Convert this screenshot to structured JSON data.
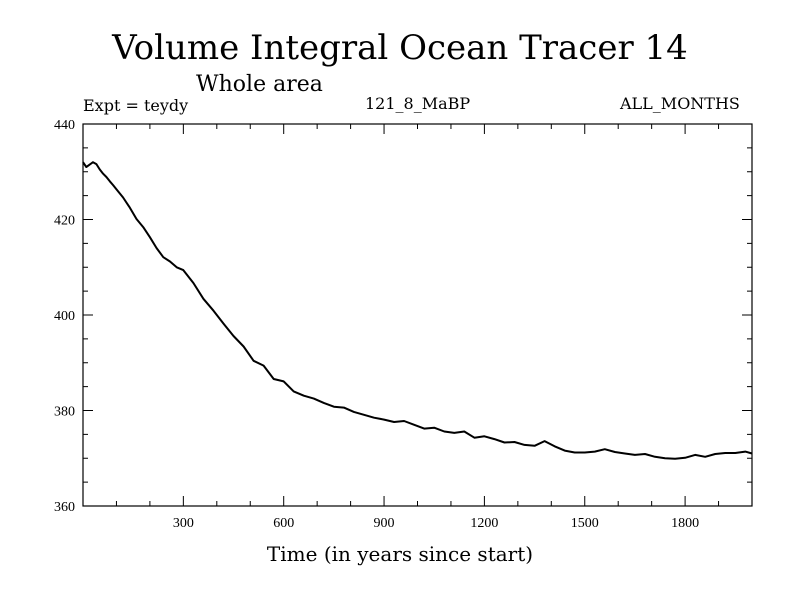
{
  "header": {
    "title": "Volume Integral Ocean Tracer 14",
    "subtitle": "Whole area",
    "experiment": "Expt = teydy",
    "run_label": "121_8_MaBP",
    "months_label": "ALL_MONTHS"
  },
  "chart_data": {
    "type": "line",
    "title": "Volume Integral Ocean Tracer 14",
    "subtitle": "Whole area",
    "xlabel": "Time (in years since start)",
    "ylabel": "",
    "xlim": [
      0,
      2000
    ],
    "ylim": [
      360,
      440
    ],
    "xticks": [
      300,
      600,
      900,
      1200,
      1500,
      1800
    ],
    "yticks": [
      360,
      380,
      400,
      420,
      440
    ],
    "grid": false,
    "series": [
      {
        "name": "Tracer 14",
        "color": "#000000",
        "x": [
          0,
          10,
          20,
          30,
          40,
          50,
          60,
          70,
          80,
          90,
          100,
          120,
          140,
          160,
          180,
          200,
          220,
          240,
          260,
          280,
          300,
          330,
          360,
          390,
          420,
          450,
          480,
          510,
          540,
          570,
          600,
          630,
          660,
          690,
          720,
          750,
          780,
          810,
          840,
          870,
          900,
          930,
          960,
          990,
          1020,
          1050,
          1080,
          1110,
          1140,
          1170,
          1200,
          1230,
          1260,
          1290,
          1320,
          1350,
          1380,
          1410,
          1440,
          1470,
          1500,
          1530,
          1560,
          1590,
          1620,
          1650,
          1680,
          1710,
          1740,
          1770,
          1800,
          1830,
          1860,
          1890,
          1920,
          1950,
          1980,
          2000
        ],
        "values": [
          432.0,
          431.0,
          431.5,
          432.0,
          431.6,
          430.5,
          429.6,
          428.9,
          428.0,
          427.2,
          426.3,
          424.6,
          422.5,
          420.1,
          418.4,
          416.3,
          414.0,
          412.1,
          411.2,
          410.0,
          409.4,
          406.7,
          403.4,
          400.9,
          398.2,
          395.6,
          393.4,
          390.4,
          389.4,
          386.6,
          386.1,
          384.0,
          383.1,
          382.5,
          381.6,
          380.8,
          380.6,
          379.7,
          379.1,
          378.5,
          378.1,
          377.6,
          377.8,
          377.0,
          376.2,
          376.4,
          375.6,
          375.3,
          375.6,
          374.3,
          374.6,
          374.0,
          373.3,
          373.4,
          372.8,
          372.6,
          373.6,
          372.5,
          371.6,
          371.2,
          371.2,
          371.4,
          371.9,
          371.3,
          371.0,
          370.7,
          370.9,
          370.3,
          370.0,
          369.9,
          370.1,
          370.7,
          370.3,
          370.9,
          371.1,
          371.1,
          371.4,
          371.0
        ]
      }
    ]
  }
}
